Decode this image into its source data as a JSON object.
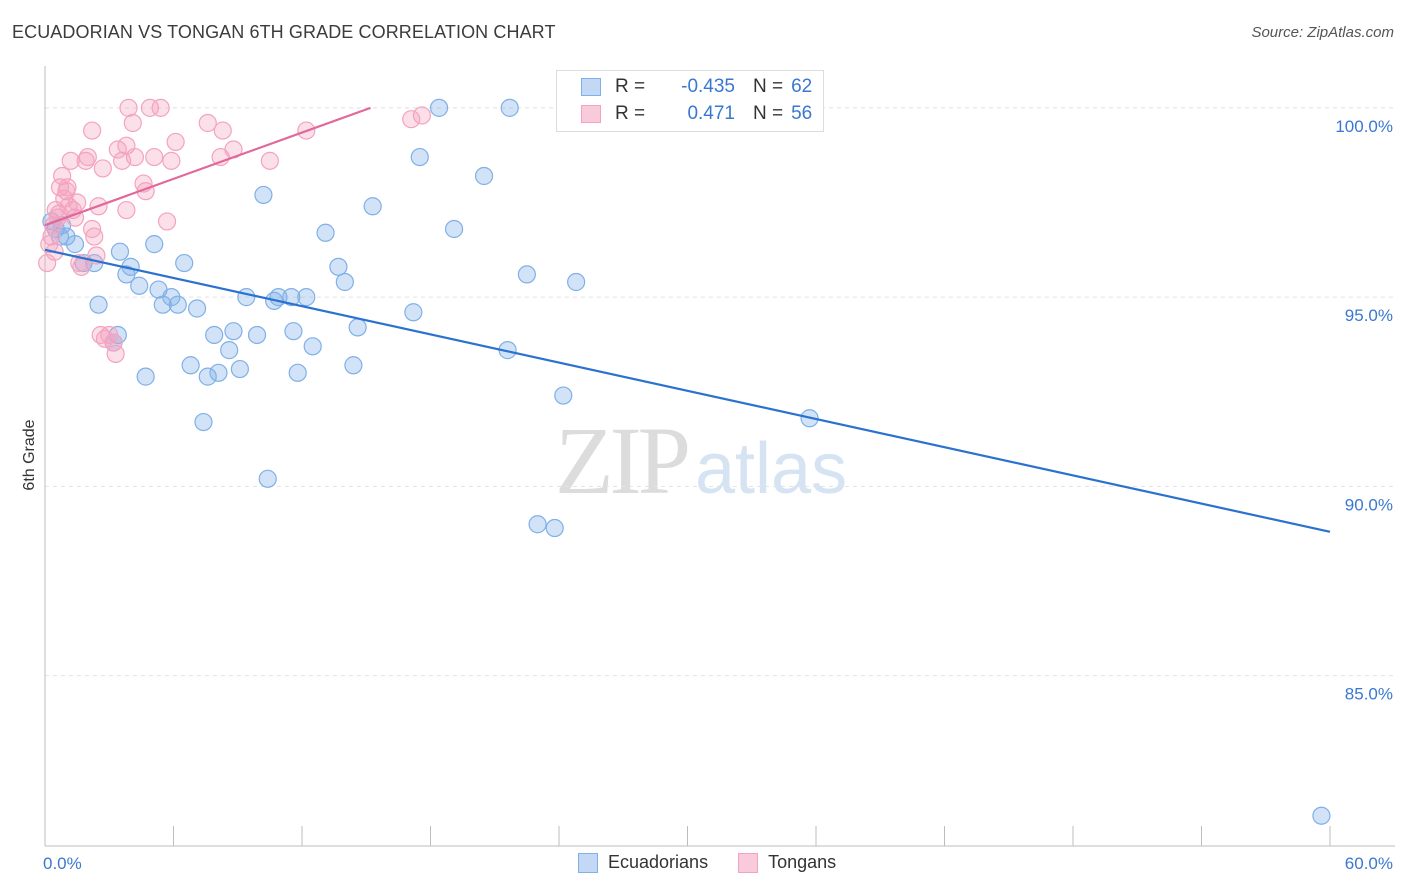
{
  "header": {
    "title": "ECUADORIAN VS TONGAN 6TH GRADE CORRELATION CHART",
    "source": "Source: ZipAtlas.com"
  },
  "watermark": {
    "zip": "ZIP",
    "atlas": "atlas"
  },
  "legend": {
    "rows": [
      {
        "r_label": "R =",
        "r_value": "-0.435",
        "n_label": "N =",
        "n_value": "62"
      },
      {
        "r_label": "R =",
        "r_value": "0.471",
        "n_label": "N =",
        "n_value": "56"
      }
    ]
  },
  "bottom_legend": {
    "ecuadorians": "Ecuadorians",
    "tongans": "Tongans"
  },
  "chart_data": {
    "type": "scatter",
    "title": "ECUADORIAN VS TONGAN 6TH GRADE CORRELATION CHART",
    "xlabel": "",
    "ylabel": "6th Grade",
    "xlim": [
      0,
      60
    ],
    "ylim": [
      80.5,
      101
    ],
    "x_tick_labels": [
      "0.0%",
      "60.0%"
    ],
    "y_ticks": [
      85,
      90,
      95,
      100
    ],
    "y_tick_labels": [
      "85.0%",
      "90.0%",
      "95.0%",
      "100.0%"
    ],
    "colors": {
      "ecuadorians": "#7fb0e8",
      "tongans": "#f4a3bf",
      "ecu_line": "#2b72d0",
      "ton_line": "#e2679a"
    },
    "series": [
      {
        "name": "Ecuadorians",
        "trend": {
          "x0": 0,
          "y0": 96.25,
          "x1": 60,
          "y1": 88.8
        },
        "points": [
          [
            0.3,
            97.0
          ],
          [
            0.5,
            96.8
          ],
          [
            0.7,
            96.6
          ],
          [
            1.0,
            96.6
          ],
          [
            1.4,
            96.4
          ],
          [
            1.8,
            95.9
          ],
          [
            2.3,
            95.9
          ],
          [
            2.5,
            94.8
          ],
          [
            3.4,
            94.0
          ],
          [
            3.2,
            93.8
          ],
          [
            3.5,
            96.2
          ],
          [
            3.8,
            95.6
          ],
          [
            4.0,
            95.8
          ],
          [
            4.4,
            95.3
          ],
          [
            4.7,
            92.9
          ],
          [
            5.1,
            96.4
          ],
          [
            5.3,
            95.2
          ],
          [
            5.5,
            94.8
          ],
          [
            5.9,
            95.0
          ],
          [
            6.2,
            94.8
          ],
          [
            6.5,
            95.9
          ],
          [
            6.8,
            93.2
          ],
          [
            7.1,
            94.7
          ],
          [
            7.4,
            91.7
          ],
          [
            7.6,
            92.9
          ],
          [
            7.9,
            94.0
          ],
          [
            8.1,
            93.0
          ],
          [
            8.6,
            93.6
          ],
          [
            8.8,
            94.1
          ],
          [
            9.1,
            93.1
          ],
          [
            9.4,
            95.0
          ],
          [
            9.9,
            94.0
          ],
          [
            10.2,
            97.7
          ],
          [
            10.4,
            90.2
          ],
          [
            10.7,
            94.9
          ],
          [
            10.9,
            95.0
          ],
          [
            11.5,
            95.0
          ],
          [
            11.6,
            94.1
          ],
          [
            11.8,
            93.0
          ],
          [
            12.2,
            95.0
          ],
          [
            12.5,
            93.7
          ],
          [
            13.1,
            96.7
          ],
          [
            13.7,
            95.8
          ],
          [
            14.0,
            95.4
          ],
          [
            14.4,
            93.2
          ],
          [
            14.6,
            94.2
          ],
          [
            15.3,
            97.4
          ],
          [
            17.2,
            94.6
          ],
          [
            17.5,
            98.7
          ],
          [
            18.4,
            100.0
          ],
          [
            19.1,
            96.8
          ],
          [
            20.5,
            98.2
          ],
          [
            21.6,
            93.6
          ],
          [
            21.7,
            100.0
          ],
          [
            22.5,
            95.6
          ],
          [
            23.0,
            89.0
          ],
          [
            23.8,
            88.9
          ],
          [
            24.2,
            92.4
          ],
          [
            24.8,
            95.4
          ],
          [
            35.7,
            91.8
          ],
          [
            59.6,
            81.3
          ],
          [
            0.8,
            96.9
          ]
        ]
      },
      {
        "name": "Tongans",
        "trend": {
          "x0": 0,
          "y0": 96.9,
          "x1": 15.2,
          "y1": 100.0
        },
        "points": [
          [
            0.1,
            95.9
          ],
          [
            0.2,
            96.4
          ],
          [
            0.3,
            96.6
          ],
          [
            0.4,
            96.9
          ],
          [
            0.5,
            97.3
          ],
          [
            0.6,
            97.1
          ],
          [
            0.7,
            97.9
          ],
          [
            0.8,
            98.2
          ],
          [
            1.0,
            97.8
          ],
          [
            1.1,
            97.4
          ],
          [
            1.2,
            98.6
          ],
          [
            1.4,
            97.1
          ],
          [
            1.5,
            97.5
          ],
          [
            1.6,
            95.9
          ],
          [
            1.7,
            95.8
          ],
          [
            1.9,
            98.6
          ],
          [
            2.0,
            98.7
          ],
          [
            2.2,
            99.4
          ],
          [
            2.2,
            96.8
          ],
          [
            2.3,
            96.6
          ],
          [
            2.4,
            96.1
          ],
          [
            2.5,
            97.4
          ],
          [
            2.6,
            94.0
          ],
          [
            2.7,
            98.4
          ],
          [
            2.8,
            93.9
          ],
          [
            3.0,
            94.0
          ],
          [
            3.2,
            93.8
          ],
          [
            3.3,
            93.5
          ],
          [
            3.4,
            98.9
          ],
          [
            3.6,
            98.6
          ],
          [
            3.8,
            99.0
          ],
          [
            3.8,
            97.3
          ],
          [
            3.9,
            100.0
          ],
          [
            4.1,
            99.6
          ],
          [
            4.2,
            98.7
          ],
          [
            4.6,
            98.0
          ],
          [
            4.7,
            97.8
          ],
          [
            4.9,
            100.0
          ],
          [
            5.1,
            98.7
          ],
          [
            5.4,
            100.0
          ],
          [
            5.7,
            97.0
          ],
          [
            5.9,
            98.6
          ],
          [
            6.1,
            99.1
          ],
          [
            7.6,
            99.6
          ],
          [
            8.2,
            98.7
          ],
          [
            8.3,
            99.4
          ],
          [
            8.8,
            98.9
          ],
          [
            10.5,
            98.6
          ],
          [
            12.2,
            99.4
          ],
          [
            17.1,
            99.7
          ],
          [
            17.6,
            99.8
          ],
          [
            0.9,
            97.6
          ],
          [
            1.3,
            97.3
          ],
          [
            0.45,
            96.2
          ],
          [
            0.65,
            97.2
          ],
          [
            1.05,
            97.9
          ]
        ]
      }
    ]
  }
}
